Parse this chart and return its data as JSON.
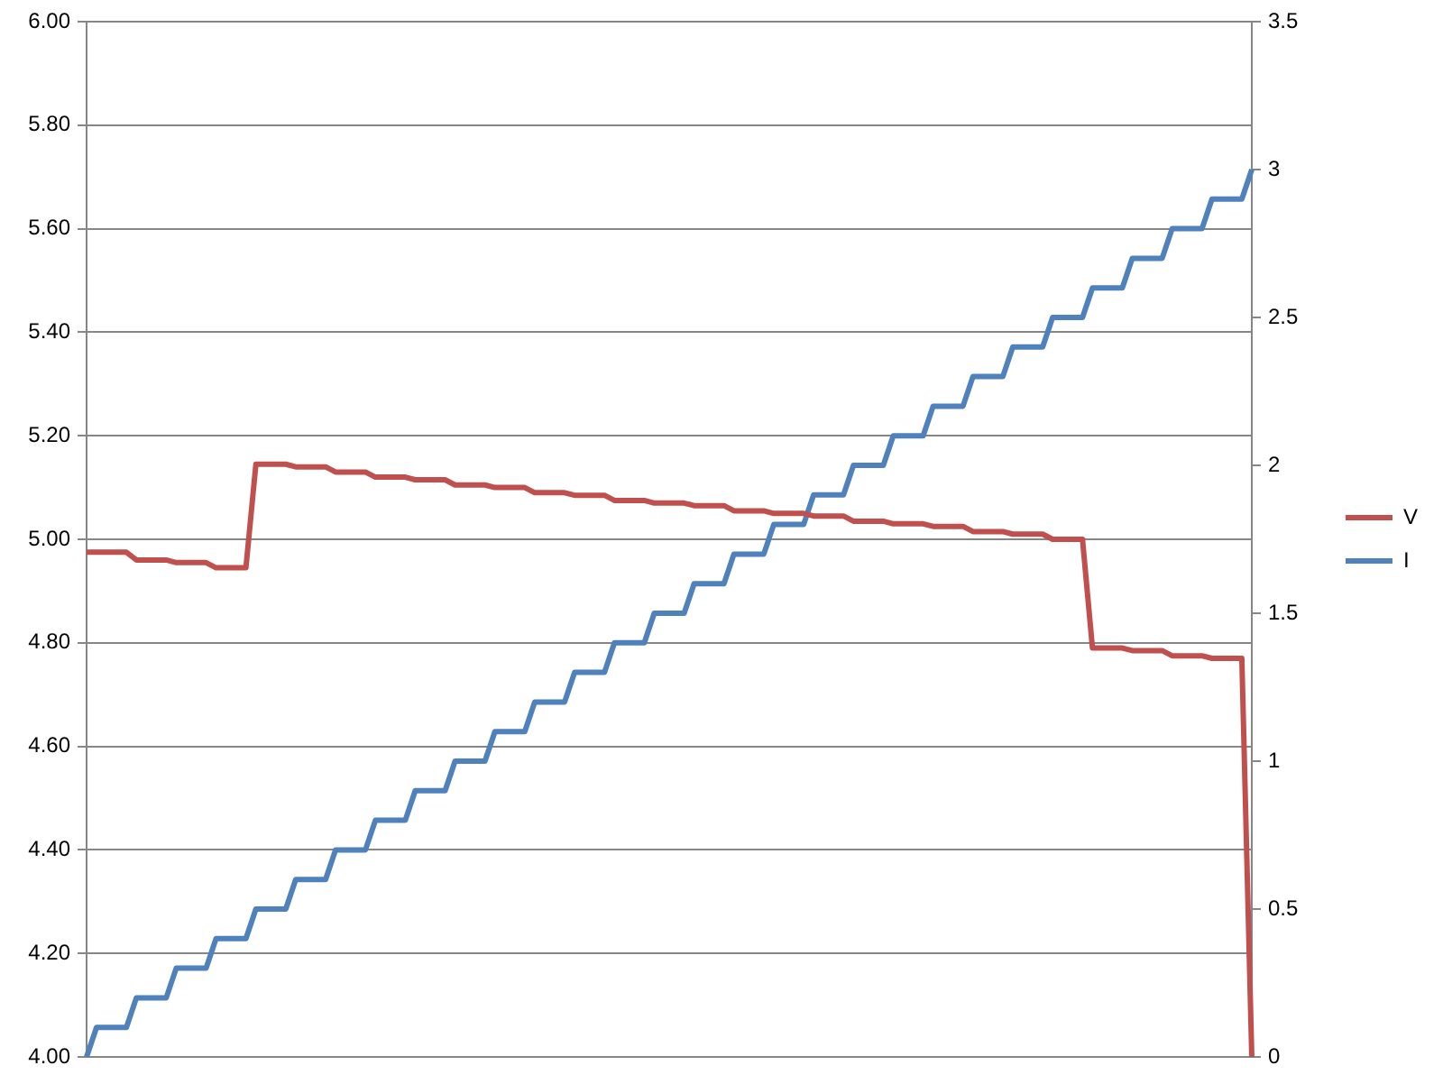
{
  "chart_data": {
    "type": "line",
    "categories": [
      null,
      null,
      null,
      null,
      null,
      null,
      null,
      null,
      null,
      null,
      null,
      null,
      null,
      null,
      null,
      null,
      null,
      null,
      null,
      null,
      null,
      null,
      null,
      null,
      null,
      null,
      null,
      null,
      null,
      null,
      null,
      null,
      null,
      null,
      null,
      null,
      null,
      null,
      null,
      null,
      null,
      null,
      null,
      null,
      null,
      null,
      null,
      null,
      null,
      null,
      null,
      null,
      null,
      null,
      null,
      null,
      null,
      null,
      null,
      null,
      null,
      null,
      null,
      null,
      null,
      null,
      null,
      null,
      null,
      null,
      null,
      null,
      null,
      null,
      null,
      null,
      null,
      null,
      null,
      null,
      null,
      null,
      null,
      null,
      null,
      null,
      null,
      null,
      null,
      null,
      null,
      null,
      null,
      null,
      null,
      null,
      null,
      null,
      null,
      null,
      null,
      null,
      null,
      null,
      null,
      null,
      null,
      null,
      null,
      null,
      null,
      null,
      null,
      null,
      null,
      null,
      null,
      null
    ],
    "series": [
      {
        "name": "V",
        "color": "#c0504d",
        "values": [
          4.975,
          4.975,
          4.975,
          4.975,
          4.975,
          4.96,
          4.96,
          4.96,
          4.96,
          4.955,
          4.955,
          4.955,
          4.955,
          4.945,
          4.945,
          4.945,
          4.945,
          5.145,
          5.145,
          5.145,
          5.145,
          5.14,
          5.14,
          5.14,
          5.14,
          5.13,
          5.13,
          5.13,
          5.13,
          5.12,
          5.12,
          5.12,
          5.12,
          5.115,
          5.115,
          5.115,
          5.115,
          5.105,
          5.105,
          5.105,
          5.105,
          5.1,
          5.1,
          5.1,
          5.1,
          5.09,
          5.09,
          5.09,
          5.09,
          5.085,
          5.085,
          5.085,
          5.085,
          5.075,
          5.075,
          5.075,
          5.075,
          5.07,
          5.07,
          5.07,
          5.07,
          5.065,
          5.065,
          5.065,
          5.065,
          5.055,
          5.055,
          5.055,
          5.055,
          5.05,
          5.05,
          5.05,
          5.05,
          5.045,
          5.045,
          5.045,
          5.045,
          5.035,
          5.035,
          5.035,
          5.035,
          5.03,
          5.03,
          5.03,
          5.03,
          5.025,
          5.025,
          5.025,
          5.025,
          5.015,
          5.015,
          5.015,
          5.015,
          5.01,
          5.01,
          5.01,
          5.01,
          5.0,
          5.0,
          5.0,
          5.0,
          4.79,
          4.79,
          4.79,
          4.79,
          4.785,
          4.785,
          4.785,
          4.785,
          4.775,
          4.775,
          4.775,
          4.775,
          4.77,
          4.77,
          4.77,
          4.77,
          4.0
        ]
      },
      {
        "name": "I",
        "color": "#4f81bd",
        "axis": "y2",
        "values": [
          0,
          0.1,
          0.1,
          0.1,
          0.1,
          0.2,
          0.2,
          0.2,
          0.2,
          0.3,
          0.3,
          0.3,
          0.3,
          0.4,
          0.4,
          0.4,
          0.4,
          0.5,
          0.5,
          0.5,
          0.5,
          0.6,
          0.6,
          0.6,
          0.6,
          0.7,
          0.7,
          0.7,
          0.7,
          0.8,
          0.8,
          0.8,
          0.8,
          0.9,
          0.9,
          0.9,
          0.9,
          1,
          1,
          1,
          1,
          1.1,
          1.1,
          1.1,
          1.1,
          1.2,
          1.2,
          1.2,
          1.2,
          1.3,
          1.3,
          1.3,
          1.3,
          1.4,
          1.4,
          1.4,
          1.4,
          1.5,
          1.5,
          1.5,
          1.5,
          1.6,
          1.6,
          1.6,
          1.6,
          1.7,
          1.7,
          1.7,
          1.7,
          1.8,
          1.8,
          1.8,
          1.8,
          1.9,
          1.9,
          1.9,
          1.9,
          2,
          2,
          2,
          2,
          2.1,
          2.1,
          2.1,
          2.1,
          2.2,
          2.2,
          2.2,
          2.2,
          2.3,
          2.3,
          2.3,
          2.3,
          2.4,
          2.4,
          2.4,
          2.4,
          2.5,
          2.5,
          2.5,
          2.5,
          2.6,
          2.6,
          2.6,
          2.6,
          2.7,
          2.7,
          2.7,
          2.7,
          2.8,
          2.8,
          2.8,
          2.8,
          2.9,
          2.9,
          2.9,
          2.9,
          3
        ]
      }
    ],
    "ylim": [
      4,
      6
    ],
    "yticks": [
      {
        "value": 4,
        "label": "4.00"
      },
      {
        "value": 4.2,
        "label": "4.20"
      },
      {
        "value": 4.4,
        "label": "4.40"
      },
      {
        "value": 4.6,
        "label": "4.60"
      },
      {
        "value": 4.8,
        "label": "4.80"
      },
      {
        "value": 5,
        "label": "5.00"
      },
      {
        "value": 5.2,
        "label": "5.20"
      },
      {
        "value": 5.4,
        "label": "5.40"
      },
      {
        "value": 5.6,
        "label": "5.60"
      },
      {
        "value": 5.8,
        "label": "5.80"
      },
      {
        "value": 6,
        "label": "6.00"
      }
    ],
    "y2lim": [
      0,
      3.5
    ],
    "y2ticks": [
      0,
      0.5,
      1,
      1.5,
      2,
      2.5,
      3,
      3.5
    ],
    "grid": "y",
    "legend": "right"
  }
}
